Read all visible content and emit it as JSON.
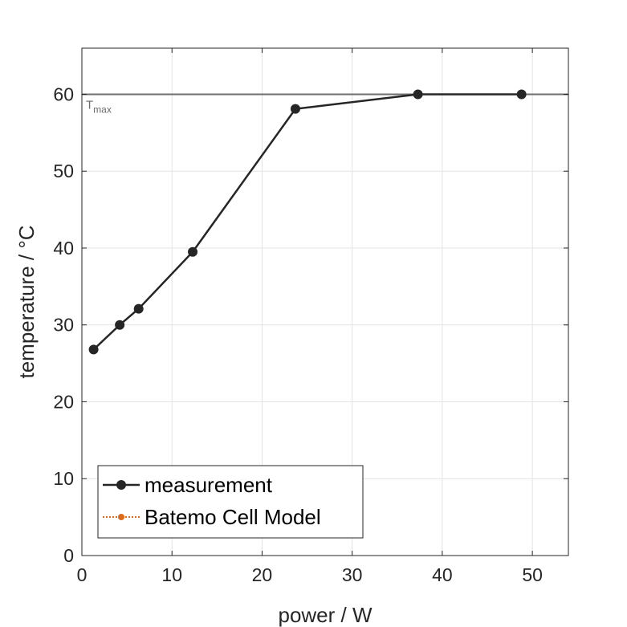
{
  "chart_data": {
    "type": "line",
    "xlabel": "power / W",
    "ylabel": "temperature / °C",
    "xlim": [
      0,
      54
    ],
    "ylim": [
      0,
      66
    ],
    "xticks": [
      0,
      10,
      20,
      30,
      40,
      50
    ],
    "yticks": [
      0,
      10,
      20,
      30,
      40,
      50,
      60
    ],
    "grid": true,
    "legend_position": "bottom-left",
    "reference_line": {
      "y": 60,
      "label_main": "T",
      "label_sub": "max",
      "color": "#6e6e6e"
    },
    "series": [
      {
        "name": "measurement",
        "color": "#262626",
        "style": "solid",
        "marker": "circle",
        "x": [
          1.3,
          4.2,
          6.3,
          12.3,
          23.7,
          37.3,
          48.8
        ],
        "y": [
          26.8,
          30.0,
          32.1,
          39.5,
          58.1,
          60.0,
          60.0
        ]
      },
      {
        "name": "Batemo Cell Model",
        "color": "#e06a1c",
        "style": "dotted",
        "marker": "circle",
        "x": [],
        "y": []
      }
    ]
  }
}
